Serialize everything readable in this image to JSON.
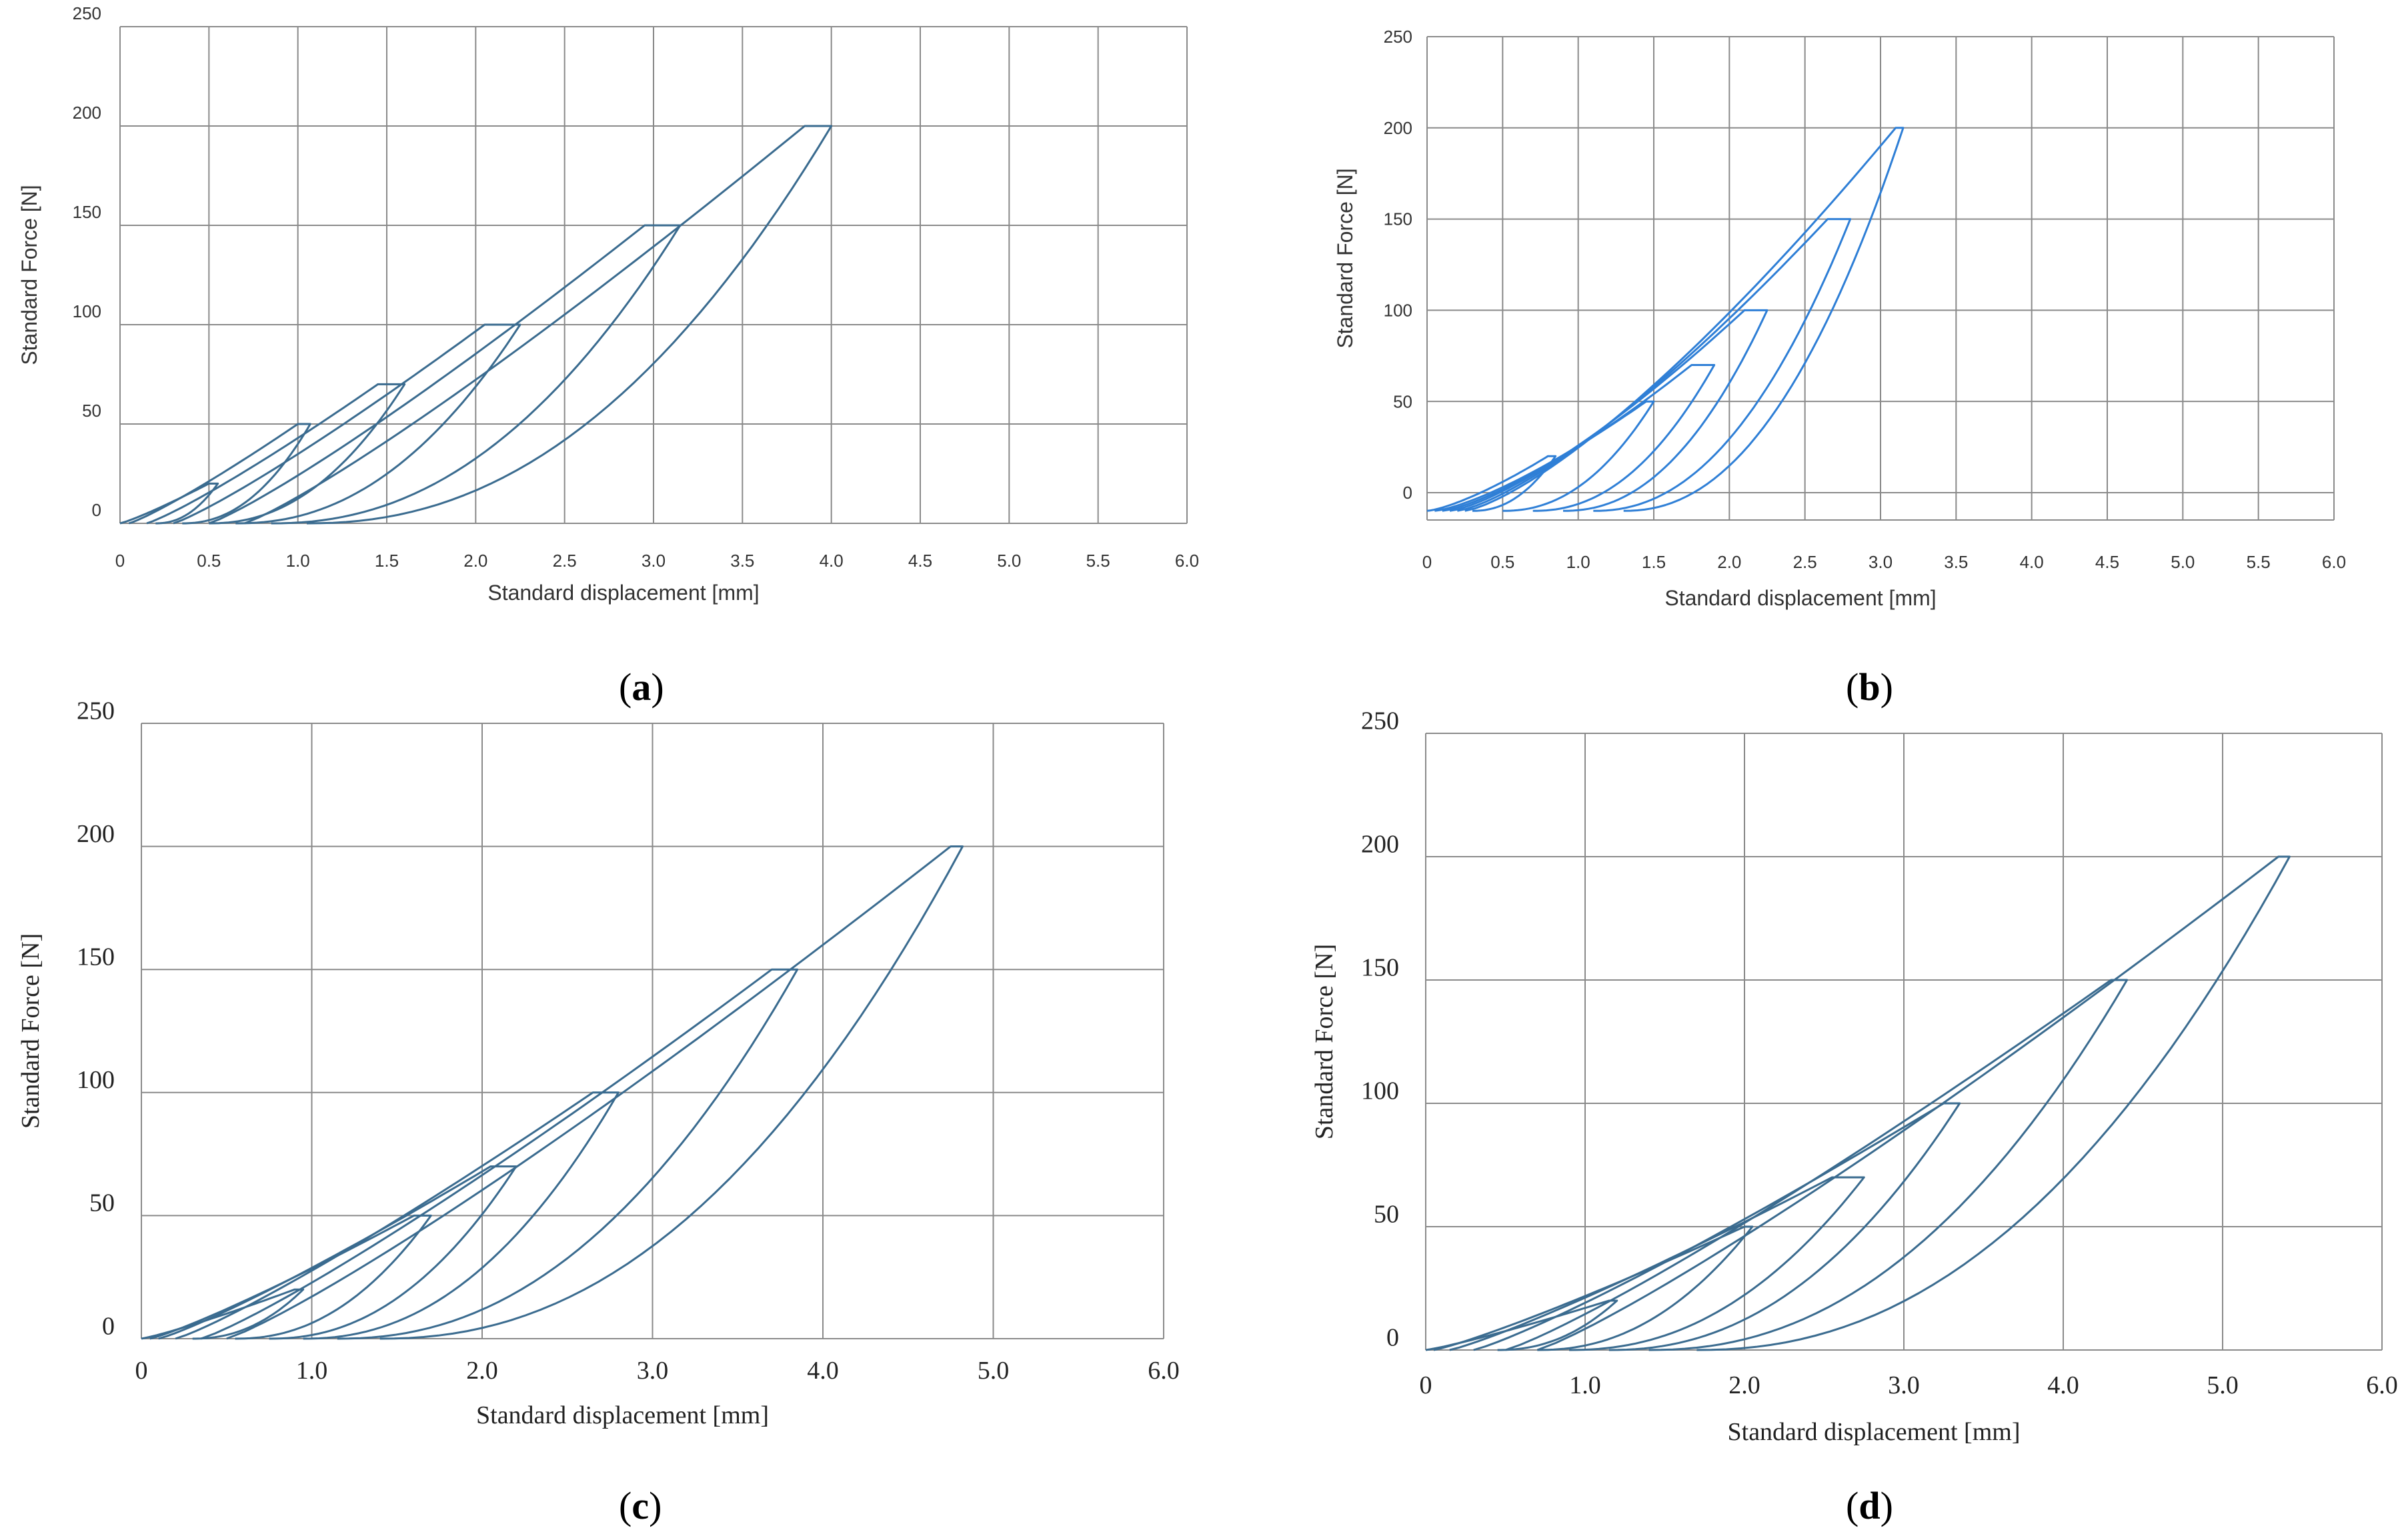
{
  "colors": {
    "curve_dark": "#3a6b8f",
    "curve_bright": "#2f7fd6",
    "grid": "#8a8a8a"
  },
  "chart_data": [
    {
      "panel": "a",
      "caption_paren_open": "(",
      "caption_letter": "a",
      "caption_paren_close": ")",
      "type": "line",
      "title": "",
      "xlabel": "Standard displacement [mm]",
      "ylabel": "Standard Force [N]",
      "xlim": [
        0,
        6.0
      ],
      "ylim": [
        0,
        250
      ],
      "x_ticks": [
        0,
        0.5,
        1.0,
        1.5,
        2.0,
        2.5,
        3.0,
        3.5,
        4.0,
        4.5,
        5.0,
        5.5,
        6.0
      ],
      "x_tick_labels": [
        "0",
        "0.5",
        "1.0",
        "1.5",
        "2.0",
        "2.5",
        "3.0",
        "3.5",
        "4.0",
        "4.5",
        "5.0",
        "5.5",
        "6.0"
      ],
      "y_ticks": [
        0,
        50,
        100,
        150,
        200,
        250
      ],
      "y_tick_labels": [
        "0",
        "50",
        "100",
        "150",
        "200",
        "250"
      ],
      "cycles": [
        {
          "peak_force": 20,
          "load_start": 0.0,
          "peak_x_start": 0.5,
          "peak_x_end": 0.55,
          "unload_end": 0.2
        },
        {
          "peak_force": 50,
          "load_start": 0.05,
          "peak_x_start": 1.0,
          "peak_x_end": 1.07,
          "unload_end": 0.35
        },
        {
          "peak_force": 70,
          "load_start": 0.15,
          "peak_x_start": 1.45,
          "peak_x_end": 1.6,
          "unload_end": 0.5
        },
        {
          "peak_force": 100,
          "load_start": 0.3,
          "peak_x_start": 2.05,
          "peak_x_end": 2.25,
          "unload_end": 0.65
        },
        {
          "peak_force": 150,
          "load_start": 0.5,
          "peak_x_start": 2.95,
          "peak_x_end": 3.15,
          "unload_end": 0.85
        },
        {
          "peak_force": 200,
          "load_start": 0.7,
          "peak_x_start": 3.85,
          "peak_x_end": 4.0,
          "unload_end": 1.05
        }
      ]
    },
    {
      "panel": "b",
      "caption_paren_open": "(",
      "caption_letter": "b",
      "caption_paren_close": ")",
      "type": "line",
      "title": "",
      "xlabel": "Standard displacement [mm]",
      "ylabel": "Standard Force [N]",
      "xlim": [
        0,
        6.0
      ],
      "ylim": [
        -15,
        250
      ],
      "x_ticks": [
        0,
        0.5,
        1.0,
        1.5,
        2.0,
        2.5,
        3.0,
        3.5,
        4.0,
        4.5,
        5.0,
        5.5,
        6.0
      ],
      "x_tick_labels": [
        "0",
        "0.5",
        "1.0",
        "1.5",
        "2.0",
        "2.5",
        "3.0",
        "3.5",
        "4.0",
        "4.5",
        "5.0",
        "5.5",
        "6.0"
      ],
      "y_ticks": [
        0,
        50,
        100,
        150,
        200,
        250
      ],
      "y_tick_labels": [
        "0",
        "50",
        "100",
        "150",
        "200",
        "250"
      ],
      "cycles": [
        {
          "peak_force": 20,
          "load_start": 0.0,
          "peak_x_start": 0.8,
          "peak_x_end": 0.85,
          "unload_end": 0.3
        },
        {
          "peak_force": 50,
          "load_start": 0.05,
          "peak_x_start": 1.45,
          "peak_x_end": 1.5,
          "unload_end": 0.5
        },
        {
          "peak_force": 70,
          "load_start": 0.1,
          "peak_x_start": 1.75,
          "peak_x_end": 1.9,
          "unload_end": 0.7
        },
        {
          "peak_force": 100,
          "load_start": 0.15,
          "peak_x_start": 2.1,
          "peak_x_end": 2.25,
          "unload_end": 0.9
        },
        {
          "peak_force": 150,
          "load_start": 0.2,
          "peak_x_start": 2.65,
          "peak_x_end": 2.8,
          "unload_end": 1.1
        },
        {
          "peak_force": 200,
          "load_start": 0.25,
          "peak_x_start": 3.1,
          "peak_x_end": 3.15,
          "unload_end": 1.3
        }
      ]
    },
    {
      "panel": "c",
      "caption_paren_open": "(",
      "caption_letter": "c",
      "caption_paren_close": ")",
      "type": "line",
      "title": "",
      "xlabel": "Standard displacement [mm]",
      "ylabel": "Standard Force [N]",
      "xlim": [
        0,
        6.0
      ],
      "ylim": [
        0,
        250
      ],
      "x_ticks": [
        0,
        1.0,
        2.0,
        3.0,
        4.0,
        5.0,
        6.0
      ],
      "x_tick_labels": [
        "0",
        "1.0",
        "2.0",
        "3.0",
        "4.0",
        "5.0",
        "6.0"
      ],
      "y_ticks": [
        0,
        50,
        100,
        150,
        200,
        250
      ],
      "y_tick_labels": [
        "0",
        "50",
        "100",
        "150",
        "200",
        "250"
      ],
      "cycles": [
        {
          "peak_force": 20,
          "load_start": 0.0,
          "peak_x_start": 0.9,
          "peak_x_end": 0.95,
          "unload_end": 0.3
        },
        {
          "peak_force": 50,
          "load_start": 0.05,
          "peak_x_start": 1.6,
          "peak_x_end": 1.7,
          "unload_end": 0.55
        },
        {
          "peak_force": 70,
          "load_start": 0.1,
          "peak_x_start": 2.05,
          "peak_x_end": 2.2,
          "unload_end": 0.75
        },
        {
          "peak_force": 100,
          "load_start": 0.2,
          "peak_x_start": 2.65,
          "peak_x_end": 2.8,
          "unload_end": 0.95
        },
        {
          "peak_force": 150,
          "load_start": 0.35,
          "peak_x_start": 3.7,
          "peak_x_end": 3.85,
          "unload_end": 1.15
        },
        {
          "peak_force": 200,
          "load_start": 0.5,
          "peak_x_start": 4.75,
          "peak_x_end": 4.82,
          "unload_end": 1.4
        }
      ]
    },
    {
      "panel": "d",
      "caption_paren_open": "(",
      "caption_letter": "d",
      "caption_paren_close": ")",
      "type": "line",
      "title": "",
      "xlabel": "Standard displacement [mm]",
      "ylabel": "Standard Force [N]",
      "xlim": [
        0,
        6.0
      ],
      "ylim": [
        0,
        250
      ],
      "x_ticks": [
        0,
        1.0,
        2.0,
        3.0,
        4.0,
        5.0,
        6.0
      ],
      "x_tick_labels": [
        "0",
        "1.0",
        "2.0",
        "3.0",
        "4.0",
        "5.0",
        "6.0"
      ],
      "y_ticks": [
        0,
        50,
        100,
        150,
        200,
        250
      ],
      "y_tick_labels": [
        "0",
        "50",
        "100",
        "150",
        "200",
        "250"
      ],
      "cycles": [
        {
          "peak_force": 20,
          "load_start": 0.0,
          "peak_x_start": 1.15,
          "peak_x_end": 1.2,
          "unload_end": 0.45
        },
        {
          "peak_force": 50,
          "load_start": 0.05,
          "peak_x_start": 2.0,
          "peak_x_end": 2.05,
          "unload_end": 0.7
        },
        {
          "peak_force": 70,
          "load_start": 0.15,
          "peak_x_start": 2.55,
          "peak_x_end": 2.75,
          "unload_end": 0.9
        },
        {
          "peak_force": 100,
          "load_start": 0.3,
          "peak_x_start": 3.25,
          "peak_x_end": 3.35,
          "unload_end": 1.15
        },
        {
          "peak_force": 150,
          "load_start": 0.5,
          "peak_x_start": 4.3,
          "peak_x_end": 4.4,
          "unload_end": 1.4
        },
        {
          "peak_force": 200,
          "load_start": 0.7,
          "peak_x_start": 5.35,
          "peak_x_end": 5.42,
          "unload_end": 1.7
        }
      ]
    }
  ]
}
